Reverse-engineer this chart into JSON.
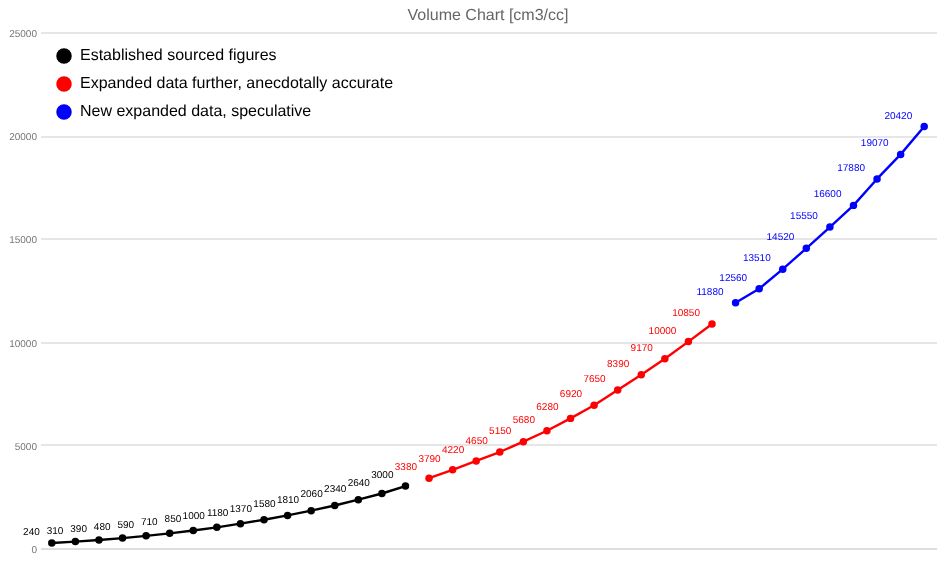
{
  "chart_data": {
    "type": "line",
    "title": "Volume Chart [cm3/cc]",
    "categories": [
      null,
      null,
      null,
      null,
      null,
      null,
      null,
      null,
      null,
      null,
      null,
      null,
      null,
      null,
      null,
      null,
      null,
      null,
      null,
      null,
      null,
      null,
      null,
      null,
      null,
      null,
      null,
      null,
      null,
      null,
      null,
      null,
      null,
      null,
      null,
      null,
      null,
      null
    ],
    "series": [
      {
        "name": "Established sourced figures",
        "color": "#000000",
        "values": [
          240,
          310,
          390,
          480,
          590,
          710,
          850,
          1000,
          1180,
          1370,
          1580,
          1810,
          2060,
          2340,
          2640,
          3000,
          null,
          null,
          null,
          null,
          null,
          null,
          null,
          null,
          null,
          null,
          null,
          null,
          null,
          null,
          null,
          null,
          null,
          null,
          null,
          null,
          null,
          null
        ]
      },
      {
        "name": "Expanded data further, anecdotally accurate",
        "color": "#ff0000",
        "values": [
          null,
          null,
          null,
          null,
          null,
          null,
          null,
          null,
          null,
          null,
          null,
          null,
          null,
          null,
          null,
          null,
          3380,
          3790,
          4220,
          4650,
          5150,
          5680,
          6280,
          6920,
          7650,
          8390,
          9170,
          10000,
          10850,
          null,
          null,
          null,
          null,
          null,
          null,
          null,
          null,
          null
        ]
      },
      {
        "name": "New expanded data, speculative",
        "color": "#0000ff",
        "values": [
          null,
          null,
          null,
          null,
          null,
          null,
          null,
          null,
          null,
          null,
          null,
          null,
          null,
          null,
          null,
          null,
          null,
          null,
          null,
          null,
          null,
          null,
          null,
          null,
          null,
          null,
          null,
          null,
          null,
          11880,
          12560,
          13510,
          14520,
          15550,
          16600,
          17880,
          19070,
          20420
        ]
      }
    ],
    "ylim": [
      0,
      25000
    ],
    "yticks": [
      0,
      5000,
      10000,
      15000,
      20000,
      25000
    ],
    "grid": "y",
    "legend": "top left",
    "marker": "circle",
    "data_labels": true
  }
}
